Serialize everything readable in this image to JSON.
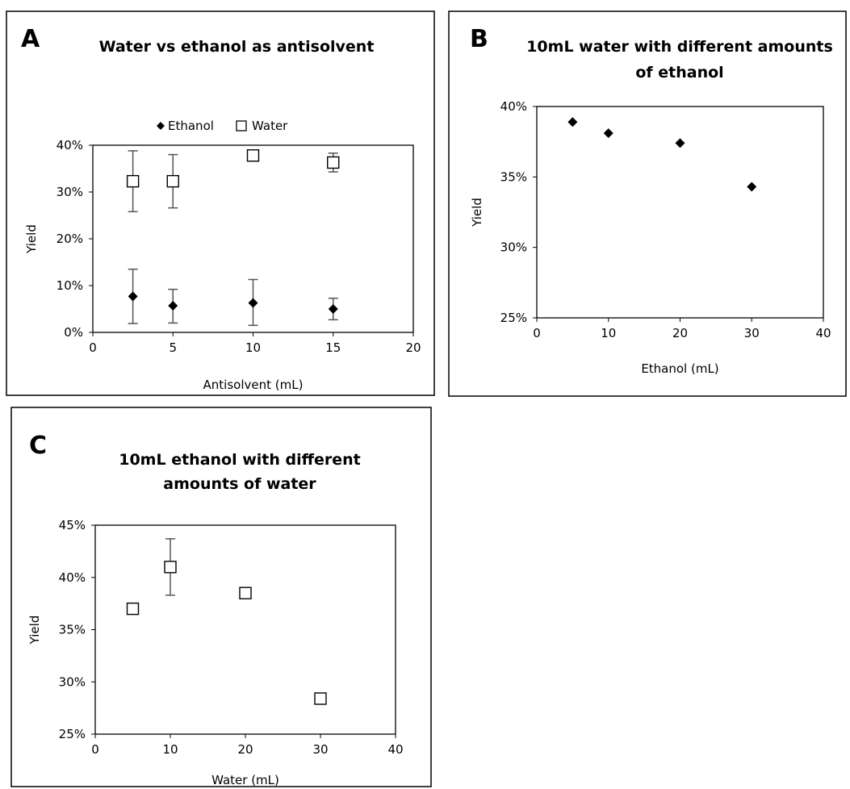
{
  "chart_data": [
    {
      "panel": "A",
      "type": "scatter",
      "title": "Water vs ethanol as antisolvent",
      "xlabel": "Antisolvent (mL)",
      "ylabel": "Yield",
      "xlim": [
        0,
        20
      ],
      "ylim": [
        0,
        0.4
      ],
      "x_ticks": [
        0,
        5,
        10,
        15,
        20
      ],
      "y_ticks": [
        0,
        0.1,
        0.2,
        0.3,
        0.4
      ],
      "x_tick_labels": [
        "0",
        "5",
        "10",
        "15",
        "20"
      ],
      "y_tick_labels": [
        "0%",
        "10%",
        "20%",
        "30%",
        "40%"
      ],
      "legend_position": "top",
      "legend_labels": [
        "Ethanol",
        "Water"
      ],
      "series": [
        {
          "name": "Ethanol",
          "marker": "filled-diamond",
          "x": [
            2.5,
            5,
            10,
            15
          ],
          "y": [
            0.077,
            0.057,
            0.063,
            0.05
          ],
          "err_low": [
            0.058,
            0.037,
            0.048,
            0.023
          ],
          "err_high": [
            0.058,
            0.035,
            0.05,
            0.023
          ]
        },
        {
          "name": "Water",
          "marker": "open-square",
          "x": [
            2.5,
            5,
            10,
            15
          ],
          "y": [
            0.323,
            0.323,
            0.378,
            0.363
          ],
          "err_low": [
            0.065,
            0.057,
            0.004,
            0.02
          ],
          "err_high": [
            0.065,
            0.057,
            0.004,
            0.02
          ]
        }
      ]
    },
    {
      "panel": "B",
      "type": "scatter",
      "title": "10mL water with different amounts of ethanol",
      "title_lines": [
        "10mL water with different amounts",
        "of ethanol"
      ],
      "xlabel": "Ethanol (mL)",
      "ylabel": "Yield",
      "xlim": [
        0,
        40
      ],
      "ylim": [
        0.25,
        0.4
      ],
      "x_ticks": [
        0,
        10,
        20,
        30,
        40
      ],
      "y_ticks": [
        0.25,
        0.3,
        0.35,
        0.4
      ],
      "x_tick_labels": [
        "0",
        "10",
        "20",
        "30",
        "40"
      ],
      "y_tick_labels": [
        "25%",
        "30%",
        "35%",
        "40%"
      ],
      "series": [
        {
          "marker": "filled-diamond",
          "x": [
            5,
            10,
            20,
            30
          ],
          "y": [
            0.389,
            0.381,
            0.374,
            0.343
          ],
          "err_low": [
            0,
            0,
            0,
            0
          ],
          "err_high": [
            0,
            0,
            0,
            0
          ]
        }
      ]
    },
    {
      "panel": "C",
      "type": "scatter",
      "title": "10mL ethanol with different amounts of water",
      "title_lines": [
        "10mL ethanol with different",
        "amounts of water"
      ],
      "xlabel": "Water (mL)",
      "ylabel": "Yield",
      "xlim": [
        0,
        40
      ],
      "ylim": [
        0.25,
        0.45
      ],
      "x_ticks": [
        0,
        10,
        20,
        30,
        40
      ],
      "y_ticks": [
        0.25,
        0.3,
        0.35,
        0.4,
        0.45
      ],
      "x_tick_labels": [
        "0",
        "10",
        "20",
        "30",
        "40"
      ],
      "y_tick_labels": [
        "25%",
        "30%",
        "35%",
        "40%",
        "45%"
      ],
      "series": [
        {
          "marker": "open-square",
          "x": [
            5,
            10,
            20,
            30
          ],
          "y": [
            0.37,
            0.41,
            0.385,
            0.284
          ],
          "err_low": [
            0.004,
            0.027,
            0.003,
            0.003
          ],
          "err_high": [
            0.004,
            0.027,
            0.003,
            0.003
          ]
        }
      ]
    }
  ]
}
